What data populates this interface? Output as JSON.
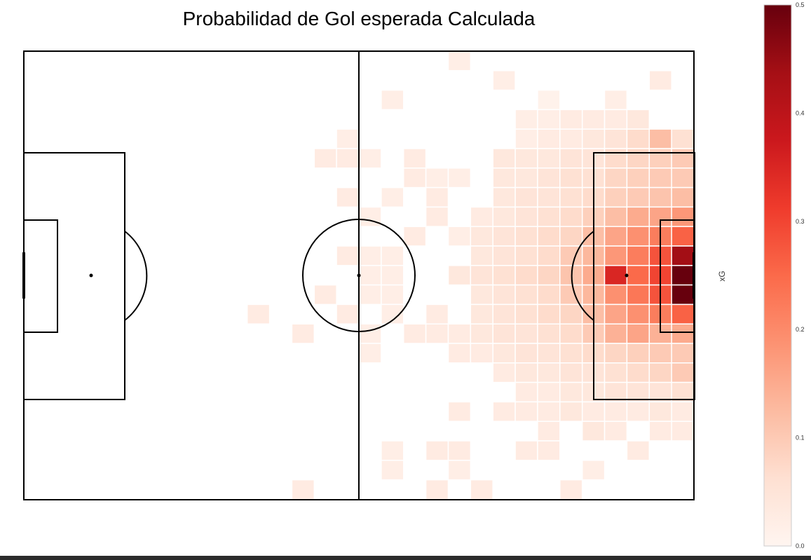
{
  "chart_data": {
    "type": "heatmap",
    "title": "Probabilidad de Gol esperada Calculada",
    "colorbar_label": "xG",
    "colorbar_range": [
      0.0,
      0.5
    ],
    "colorbar_ticks": [
      "0.0",
      "0.1",
      "0.2",
      "0.3",
      "0.4",
      "0.5"
    ],
    "colormap": "Reds",
    "grid": {
      "columns": 30,
      "rows": 23,
      "column_origin": 11,
      "cells": [
        [
          0,
          19,
          0.02
        ],
        [
          1,
          21,
          0.02
        ],
        [
          1,
          28,
          0.03
        ],
        [
          2,
          16,
          0.02
        ],
        [
          2,
          23,
          0.01
        ],
        [
          2,
          26,
          0.02
        ],
        [
          3,
          22,
          0.02
        ],
        [
          3,
          23,
          0.02
        ],
        [
          3,
          24,
          0.03
        ],
        [
          3,
          25,
          0.03
        ],
        [
          3,
          26,
          0.03
        ],
        [
          3,
          27,
          0.04
        ],
        [
          4,
          14,
          0.02
        ],
        [
          4,
          22,
          0.02
        ],
        [
          4,
          23,
          0.03
        ],
        [
          4,
          24,
          0.03
        ],
        [
          4,
          25,
          0.04
        ],
        [
          4,
          26,
          0.05
        ],
        [
          4,
          27,
          0.07
        ],
        [
          4,
          28,
          0.12
        ],
        [
          4,
          29,
          0.06
        ],
        [
          5,
          13,
          0.03
        ],
        [
          5,
          14,
          0.03
        ],
        [
          5,
          15,
          0.02
        ],
        [
          5,
          17,
          0.03
        ],
        [
          5,
          21,
          0.04
        ],
        [
          5,
          22,
          0.04
        ],
        [
          5,
          23,
          0.04
        ],
        [
          5,
          24,
          0.05
        ],
        [
          5,
          25,
          0.05
        ],
        [
          5,
          26,
          0.07
        ],
        [
          5,
          27,
          0.08
        ],
        [
          5,
          28,
          0.09
        ],
        [
          5,
          29,
          0.1
        ],
        [
          6,
          17,
          0.03
        ],
        [
          6,
          18,
          0.02
        ],
        [
          6,
          19,
          0.02
        ],
        [
          6,
          21,
          0.04
        ],
        [
          6,
          22,
          0.04
        ],
        [
          6,
          23,
          0.05
        ],
        [
          6,
          24,
          0.06
        ],
        [
          6,
          25,
          0.06
        ],
        [
          6,
          26,
          0.08
        ],
        [
          6,
          27,
          0.09
        ],
        [
          6,
          28,
          0.1
        ],
        [
          6,
          29,
          0.1
        ],
        [
          7,
          14,
          0.03
        ],
        [
          7,
          16,
          0.02
        ],
        [
          7,
          18,
          0.03
        ],
        [
          7,
          21,
          0.04
        ],
        [
          7,
          22,
          0.05
        ],
        [
          7,
          23,
          0.05
        ],
        [
          7,
          24,
          0.06
        ],
        [
          7,
          25,
          0.07
        ],
        [
          7,
          26,
          0.09
        ],
        [
          7,
          27,
          0.1
        ],
        [
          7,
          28,
          0.11
        ],
        [
          7,
          29,
          0.12
        ],
        [
          8,
          15,
          0.02
        ],
        [
          8,
          18,
          0.03
        ],
        [
          8,
          20,
          0.03
        ],
        [
          8,
          21,
          0.04
        ],
        [
          8,
          22,
          0.05
        ],
        [
          8,
          23,
          0.06
        ],
        [
          8,
          24,
          0.07
        ],
        [
          8,
          25,
          0.09
        ],
        [
          8,
          26,
          0.12
        ],
        [
          8,
          27,
          0.15
        ],
        [
          8,
          28,
          0.16
        ],
        [
          8,
          29,
          0.18
        ],
        [
          9,
          17,
          0.03
        ],
        [
          9,
          19,
          0.02
        ],
        [
          9,
          20,
          0.04
        ],
        [
          9,
          21,
          0.05
        ],
        [
          9,
          22,
          0.06
        ],
        [
          9,
          23,
          0.07
        ],
        [
          9,
          24,
          0.08
        ],
        [
          9,
          25,
          0.12
        ],
        [
          9,
          26,
          0.16
        ],
        [
          9,
          27,
          0.19
        ],
        [
          9,
          28,
          0.22
        ],
        [
          9,
          29,
          0.26
        ],
        [
          10,
          14,
          0.03
        ],
        [
          10,
          15,
          0.02
        ],
        [
          10,
          16,
          0.02
        ],
        [
          10,
          20,
          0.04
        ],
        [
          10,
          21,
          0.05
        ],
        [
          10,
          22,
          0.06
        ],
        [
          10,
          23,
          0.07
        ],
        [
          10,
          24,
          0.1
        ],
        [
          10,
          25,
          0.13
        ],
        [
          10,
          26,
          0.18
        ],
        [
          10,
          27,
          0.22
        ],
        [
          10,
          28,
          0.28
        ],
        [
          10,
          29,
          0.44
        ],
        [
          11,
          15,
          0.02
        ],
        [
          11,
          16,
          0.02
        ],
        [
          11,
          19,
          0.04
        ],
        [
          11,
          20,
          0.05
        ],
        [
          11,
          21,
          0.06
        ],
        [
          11,
          22,
          0.07
        ],
        [
          11,
          23,
          0.08
        ],
        [
          11,
          24,
          0.11
        ],
        [
          11,
          25,
          0.15
        ],
        [
          11,
          26,
          0.35
        ],
        [
          11,
          27,
          0.25
        ],
        [
          11,
          28,
          0.3
        ],
        [
          11,
          29,
          0.5
        ],
        [
          12,
          13,
          0.03
        ],
        [
          12,
          15,
          0.02
        ],
        [
          12,
          16,
          0.02
        ],
        [
          12,
          20,
          0.04
        ],
        [
          12,
          21,
          0.05
        ],
        [
          12,
          22,
          0.06
        ],
        [
          12,
          23,
          0.07
        ],
        [
          12,
          24,
          0.1
        ],
        [
          12,
          25,
          0.13
        ],
        [
          12,
          26,
          0.19
        ],
        [
          12,
          27,
          0.23
        ],
        [
          12,
          28,
          0.28
        ],
        [
          12,
          29,
          0.5
        ],
        [
          13,
          10,
          0.03
        ],
        [
          13,
          14,
          0.03
        ],
        [
          13,
          16,
          0.02
        ],
        [
          13,
          18,
          0.03
        ],
        [
          13,
          20,
          0.04
        ],
        [
          13,
          21,
          0.05
        ],
        [
          13,
          22,
          0.06
        ],
        [
          13,
          23,
          0.07
        ],
        [
          13,
          24,
          0.08
        ],
        [
          13,
          25,
          0.12
        ],
        [
          13,
          26,
          0.16
        ],
        [
          13,
          27,
          0.19
        ],
        [
          13,
          28,
          0.22
        ],
        [
          13,
          29,
          0.26
        ],
        [
          14,
          12,
          0.03
        ],
        [
          14,
          15,
          0.02
        ],
        [
          14,
          17,
          0.03
        ],
        [
          14,
          18,
          0.03
        ],
        [
          14,
          19,
          0.03
        ],
        [
          14,
          20,
          0.04
        ],
        [
          14,
          21,
          0.05
        ],
        [
          14,
          22,
          0.05
        ],
        [
          14,
          23,
          0.06
        ],
        [
          14,
          24,
          0.07
        ],
        [
          14,
          25,
          0.1
        ],
        [
          14,
          26,
          0.14
        ],
        [
          14,
          27,
          0.16
        ],
        [
          14,
          28,
          0.14
        ],
        [
          14,
          29,
          0.15
        ],
        [
          15,
          15,
          0.02
        ],
        [
          15,
          19,
          0.03
        ],
        [
          15,
          20,
          0.03
        ],
        [
          15,
          21,
          0.04
        ],
        [
          15,
          22,
          0.05
        ],
        [
          15,
          23,
          0.05
        ],
        [
          15,
          24,
          0.06
        ],
        [
          15,
          25,
          0.07
        ],
        [
          15,
          26,
          0.08
        ],
        [
          15,
          27,
          0.09
        ],
        [
          15,
          28,
          0.1
        ],
        [
          15,
          29,
          0.1
        ],
        [
          16,
          21,
          0.03
        ],
        [
          16,
          22,
          0.04
        ],
        [
          16,
          23,
          0.04
        ],
        [
          16,
          24,
          0.05
        ],
        [
          16,
          25,
          0.05
        ],
        [
          16,
          26,
          0.06
        ],
        [
          16,
          27,
          0.07
        ],
        [
          16,
          28,
          0.08
        ],
        [
          16,
          29,
          0.1
        ],
        [
          17,
          22,
          0.03
        ],
        [
          17,
          23,
          0.03
        ],
        [
          17,
          24,
          0.04
        ],
        [
          17,
          25,
          0.04
        ],
        [
          17,
          26,
          0.05
        ],
        [
          17,
          27,
          0.05
        ],
        [
          17,
          28,
          0.05
        ],
        [
          17,
          29,
          0.06
        ],
        [
          18,
          19,
          0.03
        ],
        [
          18,
          21,
          0.03
        ],
        [
          18,
          22,
          0.03
        ],
        [
          18,
          23,
          0.03
        ],
        [
          18,
          24,
          0.04
        ],
        [
          18,
          25,
          0.03
        ],
        [
          18,
          26,
          0.03
        ],
        [
          18,
          27,
          0.03
        ],
        [
          18,
          28,
          0.04
        ],
        [
          18,
          29,
          0.03
        ],
        [
          19,
          23,
          0.03
        ],
        [
          19,
          25,
          0.04
        ],
        [
          19,
          26,
          0.03
        ],
        [
          19,
          28,
          0.03
        ],
        [
          19,
          29,
          0.03
        ],
        [
          20,
          16,
          0.02
        ],
        [
          20,
          18,
          0.03
        ],
        [
          20,
          19,
          0.03
        ],
        [
          20,
          22,
          0.03
        ],
        [
          20,
          23,
          0.03
        ],
        [
          20,
          27,
          0.03
        ],
        [
          21,
          16,
          0.02
        ],
        [
          21,
          19,
          0.02
        ],
        [
          21,
          25,
          0.02
        ],
        [
          22,
          12,
          0.03
        ],
        [
          22,
          18,
          0.03
        ],
        [
          22,
          20,
          0.03
        ],
        [
          22,
          24,
          0.03
        ]
      ]
    }
  }
}
